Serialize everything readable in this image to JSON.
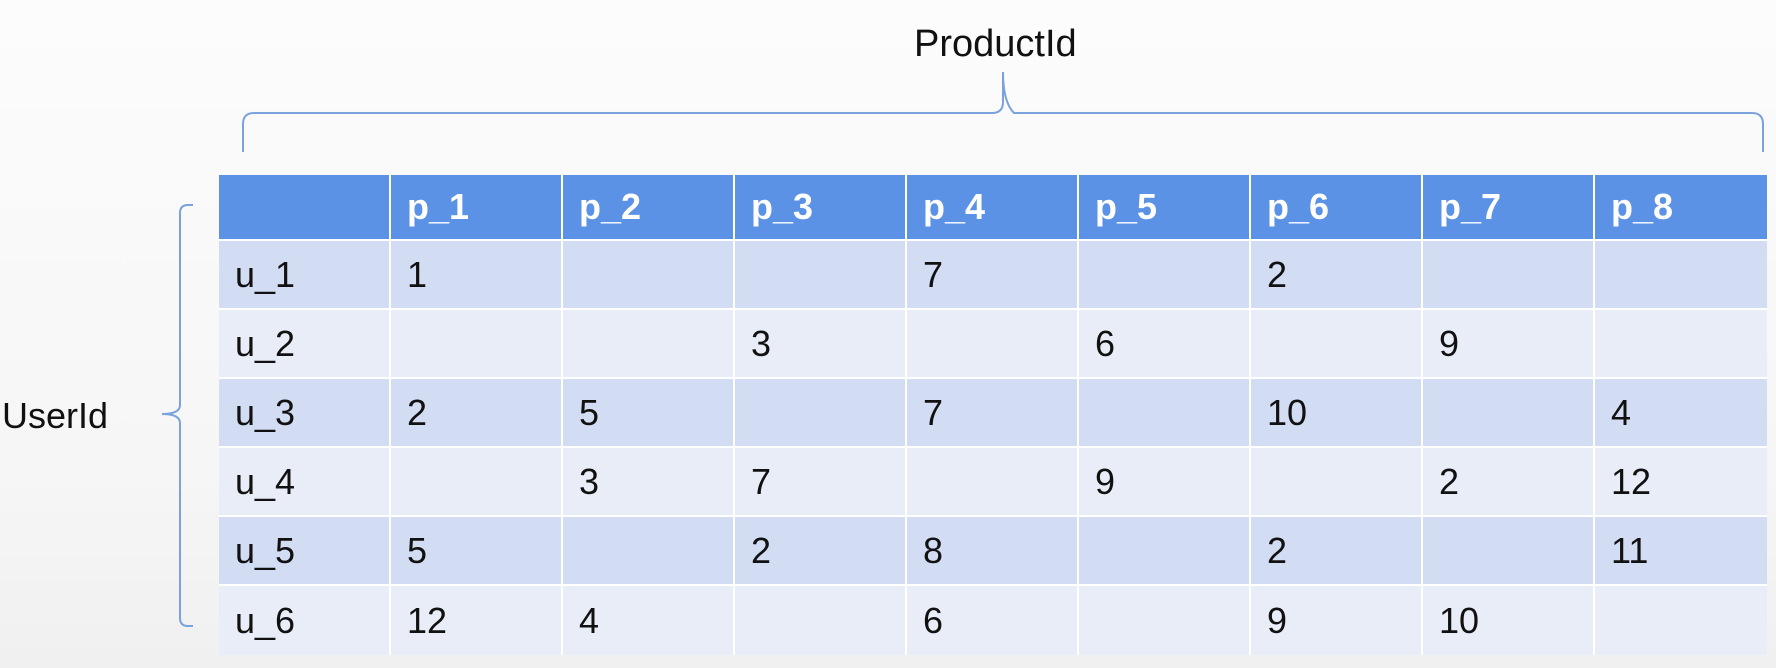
{
  "labels": {
    "product_axis": "ProductId",
    "user_axis": "UserId"
  },
  "colors": {
    "header_background": "#5b92e5",
    "header_text": "#ffffff",
    "row_odd": "#d2dcf3",
    "row_even": "#e9edf8",
    "brace": "#7aa2dc"
  },
  "table": {
    "corner": "",
    "columns": [
      "p_1",
      "p_2",
      "p_3",
      "p_4",
      "p_5",
      "p_6",
      "p_7",
      "p_8"
    ],
    "rows": [
      {
        "label": "u_1",
        "values": [
          "1",
          "",
          "",
          "7",
          "",
          "2",
          "",
          ""
        ]
      },
      {
        "label": "u_2",
        "values": [
          "",
          "",
          "3",
          "",
          "6",
          "",
          "9",
          ""
        ]
      },
      {
        "label": "u_3",
        "values": [
          "2",
          "5",
          "",
          "7",
          "",
          "10",
          "",
          "4"
        ]
      },
      {
        "label": "u_4",
        "values": [
          "",
          "3",
          "7",
          "",
          "9",
          "",
          "2",
          "12"
        ]
      },
      {
        "label": "u_5",
        "values": [
          "5",
          "",
          "2",
          "8",
          "",
          "2",
          "",
          "11"
        ]
      },
      {
        "label": "u_6",
        "values": [
          "12",
          "4",
          "",
          "6",
          "",
          "9",
          "10",
          ""
        ]
      }
    ]
  }
}
